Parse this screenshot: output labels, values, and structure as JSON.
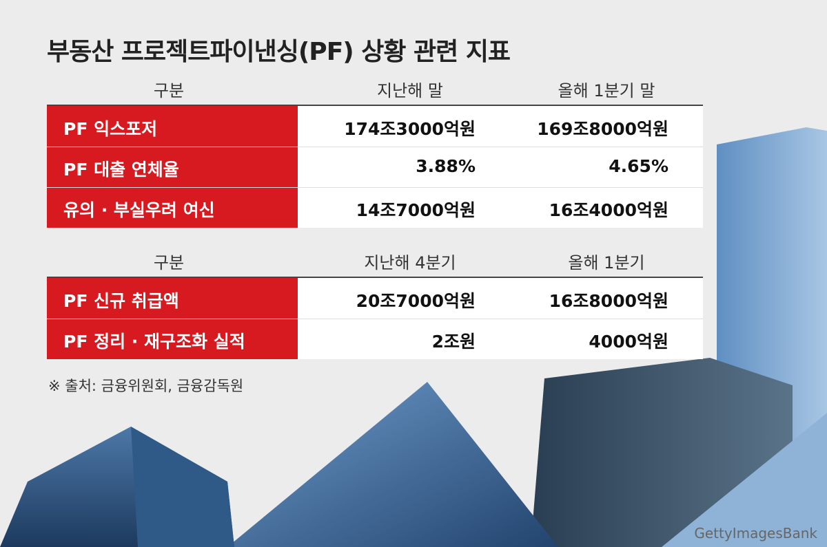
{
  "title": "부동산 프로젝트파이낸싱(PF) 상황 관련 지표",
  "tables": [
    {
      "header": [
        "구분",
        "지난해 말",
        "올해 1분기 말"
      ],
      "rows": [
        [
          "PF 익스포저",
          "174조3000억원",
          "169조8000억원"
        ],
        [
          "PF 대출 연체율",
          "3.88%",
          "4.65%"
        ],
        [
          "유의 · 부실우려 여신",
          "14조7000억원",
          "16조4000억원"
        ]
      ]
    },
    {
      "header": [
        "구분",
        "지난해 4분기",
        "올해 1분기"
      ],
      "rows": [
        [
          "PF 신규 취급액",
          "20조7000억원",
          "16조8000억원"
        ],
        [
          "PF 정리 · 재구조화 실적",
          "2조원",
          "4000억원"
        ]
      ]
    }
  ],
  "source": "※ 출처: 금융위원회, 금융감독원",
  "watermark": "GettyImagesBank"
}
